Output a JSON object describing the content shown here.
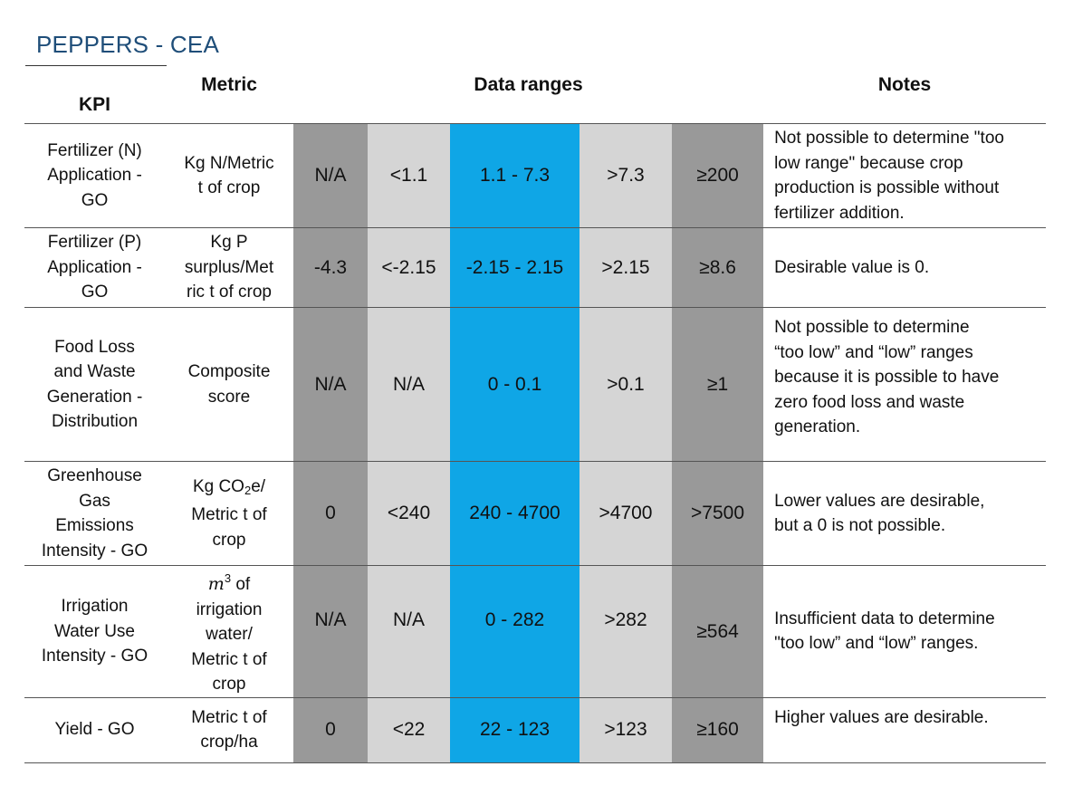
{
  "title": "PEPPERS - CEA",
  "headers": {
    "kpi": "KPI",
    "metric": "Metric",
    "ranges": "Data ranges",
    "notes": "Notes"
  },
  "rows": [
    {
      "kpi": [
        "Fertilizer (N)",
        "Application -",
        "GO"
      ],
      "metric": [
        "Kg N/Metric",
        "t of crop"
      ],
      "ranges": [
        "N/A",
        "<1.1",
        "1.1 - 7.3",
        ">7.3",
        "≥200"
      ],
      "notes": [
        "Not possible to determine \"too",
        "low range\" because crop",
        "production is possible without",
        "fertilizer addition."
      ]
    },
    {
      "kpi": [
        "Fertilizer (P)",
        "Application -",
        "GO"
      ],
      "metric": [
        "Kg P",
        "surplus/Met",
        "ric t of crop"
      ],
      "ranges": [
        "-4.3",
        "<-2.15",
        "-2.15 - 2.15",
        ">2.15",
        "≥8.6"
      ],
      "notes": [
        "Desirable value is 0."
      ]
    },
    {
      "kpi": [
        "Food Loss",
        "and Waste",
        "Generation -",
        "Distribution"
      ],
      "metric": [
        "Composite",
        "score"
      ],
      "ranges": [
        "N/A",
        "N/A",
        "0 - 0.1",
        ">0.1",
        "≥1"
      ],
      "notes": [
        "Not possible to determine",
        "“too low” and “low” ranges",
        "because it is possible to have",
        "zero food loss and waste",
        "generation."
      ]
    },
    {
      "kpi": [
        "Greenhouse",
        "Gas",
        "Emissions",
        "Intensity - GO"
      ],
      "metric": {
        "line1_pre": "Kg CO",
        "line1_sub": "2",
        "line1_post": "e/",
        "line2": "Metric t of",
        "line3": "crop"
      },
      "ranges": [
        "0",
        "<240",
        "240 - 4700",
        ">4700",
        ">7500"
      ],
      "notes": [
        "Lower values are desirable,",
        "but a 0 is not possible."
      ]
    },
    {
      "kpi": [
        "Irrigation",
        "Water Use",
        "Intensity - GO"
      ],
      "metric": {
        "line1_math": "m",
        "line1_sup": "3",
        "line1_post": " of",
        "line2": "irrigation",
        "line3": "water/",
        "line4": "Metric t of",
        "line5": "crop"
      },
      "ranges": [
        "N/A",
        "N/A",
        "0 - 282",
        ">282",
        "≥564"
      ],
      "notes": [
        "Insufficient data to determine",
        "\"too low” and “low” ranges."
      ]
    },
    {
      "kpi": [
        "Yield - GO"
      ],
      "metric": [
        "Metric t of",
        "crop/ha"
      ],
      "ranges": [
        "0",
        "<22",
        "22 - 123",
        ">123",
        "≥160"
      ],
      "notes": [
        "Higher values are desirable."
      ]
    }
  ],
  "colors": {
    "dark_gray": "#999999",
    "light_gray": "#d5d5d5",
    "blue": "#0fa6e6",
    "title": "#1f4e79"
  }
}
